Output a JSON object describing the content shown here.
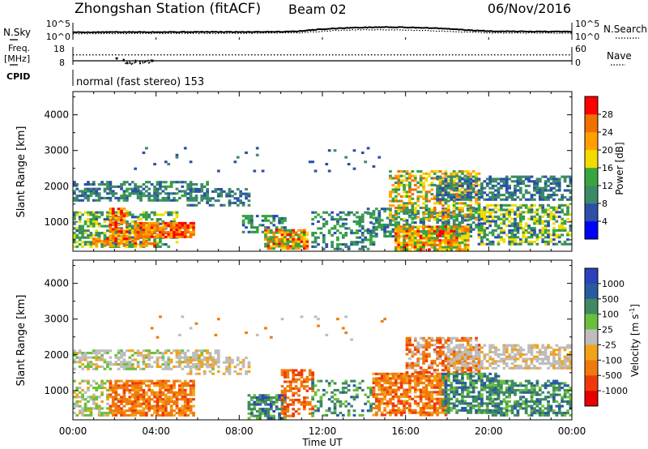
{
  "header": {
    "station": "Zhongshan Station (fitACF)",
    "beam": "Beam 02",
    "date": "06/Nov/2016"
  },
  "time_axis": {
    "ticks": [
      "00:00",
      "04:00",
      "08:00",
      "12:00",
      "16:00",
      "20:00",
      "00:00"
    ],
    "label": "Time UT"
  },
  "noise_panel": {
    "left_label": "N.Sky",
    "right_label": "N.Search",
    "left_ticks": [
      "10^5",
      "10^0"
    ],
    "right_ticks": [
      "10^5",
      "10^0"
    ]
  },
  "freq_panel": {
    "left_label_1": "Freq.",
    "left_label_2": "[MHz]",
    "right_label": "Nave",
    "left_ticks": [
      "18",
      "8"
    ],
    "right_ticks": [
      "60",
      "0"
    ]
  },
  "cpid": {
    "label": "CPID",
    "text": "normal (fast stereo) 153"
  },
  "colors": {
    "power": [
      "#0000ff",
      "#2c4faa",
      "#3b8a66",
      "#37a63f",
      "#f2dc00",
      "#ffa000",
      "#f07000",
      "#ff0000"
    ],
    "velocity": [
      "#2c42b8",
      "#2a5b9e",
      "#3f8a61",
      "#6cbf3c",
      "#bdbdbd",
      "#f2a31a",
      "#f07a0c",
      "#ee3a0a",
      "#e60000"
    ],
    "line": "#000000",
    "background": "#ffffff"
  },
  "chart_data": [
    {
      "type": "line",
      "name": "noise-panel",
      "x_unit": "hours UT",
      "xlim": [
        0,
        24
      ],
      "y_scale": "log",
      "ylim_left": [
        1,
        100000
      ],
      "series": [
        {
          "name": "N.Sky",
          "style": "solid",
          "x": [
            0,
            2,
            4,
            6,
            8,
            10,
            11,
            12,
            13,
            14,
            15,
            16,
            17,
            18,
            19,
            20,
            22,
            24
          ],
          "y": [
            150,
            170,
            180,
            190,
            190,
            220,
            320,
            1200,
            2600,
            3800,
            5000,
            4200,
            3000,
            1500,
            600,
            320,
            250,
            240
          ]
        },
        {
          "name": "N.Search",
          "style": "dotted",
          "x": [
            0,
            4,
            8,
            11,
            12,
            14,
            16,
            18,
            20,
            24
          ],
          "y": [
            60,
            70,
            75,
            110,
            300,
            900,
            700,
            250,
            100,
            80
          ]
        }
      ]
    },
    {
      "type": "line",
      "name": "frequency-panel",
      "x_unit": "hours UT",
      "xlim": [
        0,
        24
      ],
      "ylim_left": [
        8,
        18
      ],
      "ylim_right": [
        0,
        60
      ],
      "series": [
        {
          "name": "Freq",
          "style": "solid",
          "x": [
            0,
            24
          ],
          "y": [
            10.5,
            10.5
          ]
        },
        {
          "name": "Nave",
          "style": "dotted",
          "x": [
            0,
            24
          ],
          "y": [
            37,
            37
          ]
        },
        {
          "name": "Nave-dip",
          "style": "scatter",
          "x": [
            2.0,
            2.3,
            2.5,
            2.7,
            2.9,
            3.1,
            3.3,
            3.5,
            3.7
          ],
          "y": [
            24,
            17,
            12,
            10,
            14,
            9,
            13,
            15,
            20
          ]
        }
      ]
    },
    {
      "type": "heatmap",
      "name": "power",
      "x_unit": "hours UT",
      "xlim": [
        0,
        24
      ],
      "ylim": [
        180,
        4650
      ],
      "ylabel": "Slant Range [km]",
      "yticks": [
        1000,
        2000,
        3000,
        4000
      ],
      "colorbar": {
        "label": "Power [dB]",
        "ticks": [
          4,
          8,
          12,
          16,
          20,
          24,
          28
        ],
        "range": [
          0,
          32
        ]
      },
      "regions": [
        {
          "t0": 0.0,
          "t1": 6.5,
          "r0": 1600,
          "r1": 2150,
          "min": 6,
          "max": 13,
          "density": 0.6,
          "seed": 11
        },
        {
          "t0": 0.0,
          "t1": 5.0,
          "r0": 300,
          "r1": 1300,
          "min": 6,
          "max": 20,
          "density": 0.55,
          "seed": 12
        },
        {
          "t0": 1.8,
          "t1": 2.6,
          "r0": 500,
          "r1": 1400,
          "min": 18,
          "max": 31,
          "density": 0.75,
          "seed": 13
        },
        {
          "t0": 3.0,
          "t1": 5.8,
          "r0": 600,
          "r1": 1000,
          "min": 20,
          "max": 31,
          "density": 0.85,
          "seed": 14
        },
        {
          "t0": 1.0,
          "t1": 4.0,
          "r0": 320,
          "r1": 560,
          "min": 20,
          "max": 29,
          "density": 0.55,
          "seed": 15
        },
        {
          "t0": 5.5,
          "t1": 8.5,
          "r0": 1500,
          "r1": 1950,
          "min": 6,
          "max": 11,
          "density": 0.4,
          "seed": 16
        },
        {
          "t0": 8.2,
          "t1": 10.2,
          "r0": 700,
          "r1": 1200,
          "min": 6,
          "max": 16,
          "density": 0.45,
          "seed": 17
        },
        {
          "t0": 9.2,
          "t1": 11.3,
          "r0": 250,
          "r1": 800,
          "min": 12,
          "max": 31,
          "density": 0.85,
          "seed": 18
        },
        {
          "t0": 11.5,
          "t1": 14.5,
          "r0": 250,
          "r1": 1300,
          "min": 6,
          "max": 15,
          "density": 0.35,
          "seed": 19
        },
        {
          "t0": 14.2,
          "t1": 19.5,
          "r0": 600,
          "r1": 1400,
          "min": 6,
          "max": 14,
          "density": 0.5,
          "seed": 20
        },
        {
          "t0": 15.5,
          "t1": 19.0,
          "r0": 250,
          "r1": 900,
          "min": 12,
          "max": 31,
          "density": 0.85,
          "seed": 21
        },
        {
          "t0": 15.2,
          "t1": 19.5,
          "r0": 1100,
          "r1": 2450,
          "min": 10,
          "max": 26,
          "density": 0.5,
          "seed": 22
        },
        {
          "t0": 17.5,
          "t1": 24.0,
          "r0": 1650,
          "r1": 2300,
          "min": 6,
          "max": 11,
          "density": 0.6,
          "seed": 23
        },
        {
          "t0": 19.5,
          "t1": 24.0,
          "r0": 400,
          "r1": 1500,
          "min": 6,
          "max": 20,
          "density": 0.6,
          "seed": 24
        },
        {
          "t0": 3.0,
          "t1": 15.0,
          "r0": 2400,
          "r1": 3100,
          "min": 5,
          "max": 9,
          "density": 0.03,
          "seed": 25
        }
      ]
    },
    {
      "type": "heatmap",
      "name": "velocity",
      "x_unit": "hours UT",
      "xlim": [
        0,
        24
      ],
      "ylim": [
        180,
        4650
      ],
      "ylabel": "Slant Range [km]",
      "yticks": [
        1000,
        2000,
        3000,
        4000
      ],
      "colorbar": {
        "label": "Velocity [m s^-1]",
        "ticks": [
          "1000",
          "500",
          "100",
          "25",
          "-25",
          "-100",
          "-500",
          "-1000"
        ]
      },
      "regions": [
        {
          "t0": 0.0,
          "t1": 7.0,
          "r0": 1600,
          "r1": 2150,
          "classes": [
            4,
            4,
            4,
            5,
            3
          ],
          "density": 0.55,
          "seed": 31
        },
        {
          "t0": 0.0,
          "t1": 1.8,
          "r0": 300,
          "r1": 1300,
          "classes": [
            3,
            3,
            4,
            5
          ],
          "density": 0.5,
          "seed": 32
        },
        {
          "t0": 1.8,
          "t1": 5.8,
          "r0": 300,
          "r1": 1300,
          "classes": [
            6,
            6,
            5,
            6,
            7
          ],
          "density": 0.75,
          "seed": 33
        },
        {
          "t0": 5.5,
          "t1": 8.5,
          "r0": 1500,
          "r1": 1950,
          "classes": [
            4,
            4,
            5
          ],
          "density": 0.4,
          "seed": 34
        },
        {
          "t0": 8.5,
          "t1": 10.2,
          "r0": 250,
          "r1": 900,
          "classes": [
            0,
            1,
            2,
            2,
            3
          ],
          "density": 0.75,
          "seed": 35
        },
        {
          "t0": 10.0,
          "t1": 11.5,
          "r0": 300,
          "r1": 1600,
          "classes": [
            6,
            6,
            7
          ],
          "density": 0.5,
          "seed": 36
        },
        {
          "t0": 11.5,
          "t1": 14.5,
          "r0": 300,
          "r1": 1300,
          "classes": [
            1,
            2,
            2,
            3
          ],
          "density": 0.3,
          "seed": 37
        },
        {
          "t0": 14.5,
          "t1": 18.0,
          "r0": 300,
          "r1": 1500,
          "classes": [
            6,
            6,
            5,
            7
          ],
          "density": 0.75,
          "seed": 38
        },
        {
          "t0": 16.0,
          "t1": 19.5,
          "r0": 1500,
          "r1": 2500,
          "classes": [
            6,
            7,
            4,
            6
          ],
          "density": 0.55,
          "seed": 39
        },
        {
          "t0": 17.8,
          "t1": 20.5,
          "r0": 400,
          "r1": 1500,
          "classes": [
            2,
            3,
            2,
            1
          ],
          "density": 0.7,
          "seed": 40
        },
        {
          "t0": 20.0,
          "t1": 24.0,
          "r0": 300,
          "r1": 1300,
          "classes": [
            2,
            2,
            3,
            1
          ],
          "density": 0.6,
          "seed": 41
        },
        {
          "t0": 18.0,
          "t1": 24.0,
          "r0": 1650,
          "r1": 2300,
          "classes": [
            4,
            4,
            4,
            5
          ],
          "density": 0.6,
          "seed": 42
        },
        {
          "t0": 3.0,
          "t1": 15.0,
          "r0": 2400,
          "r1": 3100,
          "classes": [
            6,
            4
          ],
          "density": 0.03,
          "seed": 43
        }
      ]
    }
  ]
}
